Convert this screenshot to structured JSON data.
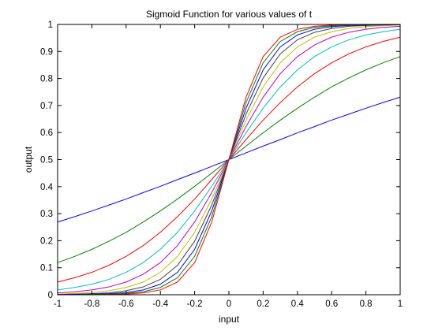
{
  "chart_data": {
    "type": "line",
    "title": "Sigmoid Function for various values of t",
    "xlabel": "input",
    "ylabel": "output",
    "xlim": [
      -1,
      1
    ],
    "ylim": [
      0,
      1
    ],
    "grid": false,
    "legend": "none",
    "x_ticks": [
      "-1",
      "-0.8",
      "-0.6",
      "-0.4",
      "-0.2",
      "0",
      "0.2",
      "0.4",
      "0.6",
      "0.8",
      "1"
    ],
    "y_ticks": [
      "0",
      "0.1",
      "0.2",
      "0.3",
      "0.4",
      "0.5",
      "0.6",
      "0.7",
      "0.8",
      "0.9",
      "1"
    ],
    "x": [
      -1,
      -0.9,
      -0.8,
      -0.7,
      -0.6,
      -0.5,
      -0.4,
      -0.3,
      -0.2,
      -0.1,
      0,
      0.1,
      0.2,
      0.3,
      0.4,
      0.5,
      0.6,
      0.7,
      0.8,
      0.9,
      1
    ],
    "series": [
      {
        "color": "#0000ff",
        "values": [
          0.269,
          0.289,
          0.31,
          0.332,
          0.354,
          0.378,
          0.401,
          0.426,
          0.45,
          0.475,
          0.5,
          0.525,
          0.55,
          0.574,
          0.599,
          0.622,
          0.646,
          0.668,
          0.69,
          0.711,
          0.731
        ]
      },
      {
        "color": "#008000",
        "values": [
          0.119,
          0.142,
          0.168,
          0.198,
          0.231,
          0.269,
          0.31,
          0.354,
          0.401,
          0.45,
          0.5,
          0.55,
          0.599,
          0.646,
          0.69,
          0.731,
          0.769,
          0.802,
          0.832,
          0.858,
          0.881
        ]
      },
      {
        "color": "#ff0000",
        "values": [
          0.047,
          0.063,
          0.083,
          0.109,
          0.142,
          0.182,
          0.231,
          0.289,
          0.354,
          0.426,
          0.5,
          0.574,
          0.646,
          0.711,
          0.769,
          0.818,
          0.858,
          0.891,
          0.917,
          0.937,
          0.953
        ]
      },
      {
        "color": "#00bfbf",
        "values": [
          0.018,
          0.027,
          0.039,
          0.057,
          0.083,
          0.119,
          0.168,
          0.231,
          0.31,
          0.401,
          0.5,
          0.599,
          0.69,
          0.769,
          0.832,
          0.881,
          0.917,
          0.943,
          0.961,
          0.973,
          0.982
        ]
      },
      {
        "color": "#bf00bf",
        "values": [
          0.007,
          0.011,
          0.018,
          0.029,
          0.047,
          0.076,
          0.119,
          0.182,
          0.269,
          0.378,
          0.5,
          0.622,
          0.731,
          0.818,
          0.881,
          0.924,
          0.953,
          0.971,
          0.982,
          0.989,
          0.993
        ]
      },
      {
        "color": "#bfbf00",
        "values": [
          0.002,
          0.005,
          0.008,
          0.015,
          0.027,
          0.047,
          0.083,
          0.142,
          0.231,
          0.354,
          0.5,
          0.646,
          0.769,
          0.858,
          0.917,
          0.953,
          0.973,
          0.985,
          0.992,
          0.995,
          0.998
        ]
      },
      {
        "color": "#404040",
        "values": [
          0.001,
          0.002,
          0.004,
          0.007,
          0.015,
          0.029,
          0.057,
          0.109,
          0.198,
          0.332,
          0.5,
          0.668,
          0.802,
          0.891,
          0.943,
          0.971,
          0.985,
          0.993,
          0.996,
          0.998,
          0.999
        ]
      },
      {
        "color": "#0000ff",
        "values": [
          0.0,
          0.001,
          0.002,
          0.004,
          0.008,
          0.018,
          0.039,
          0.083,
          0.168,
          0.31,
          0.5,
          0.69,
          0.832,
          0.917,
          0.961,
          0.982,
          0.992,
          0.996,
          0.998,
          0.999,
          1.0
        ]
      },
      {
        "color": "#008000",
        "values": [
          0.0,
          0.0,
          0.001,
          0.002,
          0.005,
          0.011,
          0.027,
          0.063,
          0.142,
          0.289,
          0.5,
          0.711,
          0.858,
          0.937,
          0.973,
          0.989,
          0.995,
          0.998,
          0.999,
          1.0,
          1.0
        ]
      },
      {
        "color": "#ff0000",
        "values": [
          0.0,
          0.0,
          0.0,
          0.001,
          0.002,
          0.007,
          0.018,
          0.047,
          0.119,
          0.269,
          0.5,
          0.731,
          0.881,
          0.953,
          0.982,
          0.993,
          0.998,
          0.999,
          1.0,
          1.0,
          1.0
        ]
      }
    ]
  }
}
